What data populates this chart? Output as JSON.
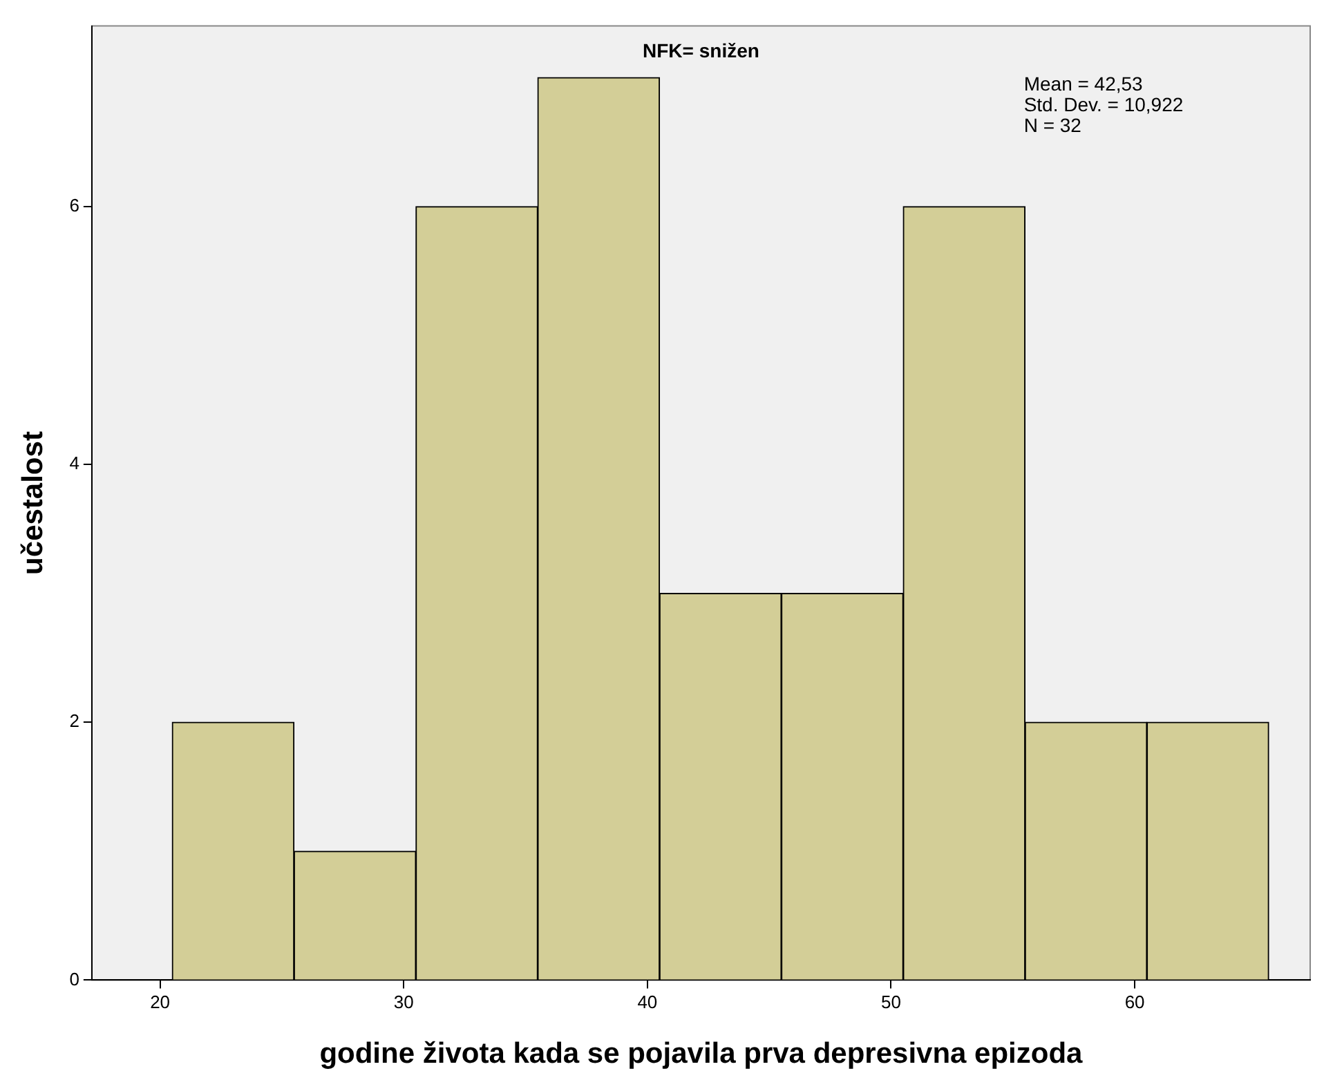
{
  "chart_data": {
    "type": "histogram",
    "title": "NFK= snižen",
    "xlabel": "godine života kada se pojavila prva depresivna epizoda",
    "ylabel": "učestalost",
    "bins": [
      20.5,
      25.5,
      30.5,
      35.5,
      40.5,
      45.5,
      50.5,
      55.5,
      60.5,
      65.5
    ],
    "values": [
      2,
      1,
      6,
      7,
      3,
      3,
      6,
      2,
      2
    ],
    "color": "#d3ce97",
    "xlim": [
      17.2,
      67.2
    ],
    "xticks": [
      20,
      30,
      40,
      50,
      60
    ],
    "ylim": [
      0,
      7.4
    ],
    "yticks": [
      0,
      2,
      4,
      6
    ],
    "annotations": [
      "Mean = 42,53",
      "Std. Dev. = 10,922",
      "N = 32"
    ]
  }
}
